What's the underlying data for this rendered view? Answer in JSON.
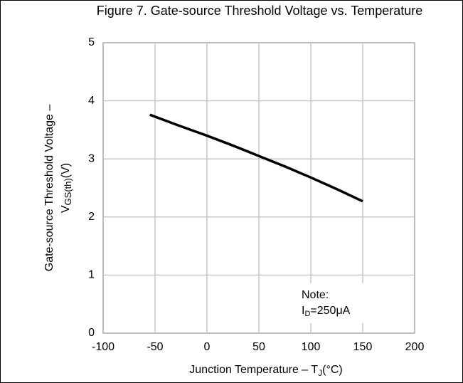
{
  "chart_data": {
    "type": "line",
    "title": "Figure 7. Gate-source Threshold Voltage vs. Temperature",
    "xlabel": {
      "text": "Junction Temperature  –  T",
      "subscript": "J",
      "unit": "(°C)"
    },
    "ylabel": {
      "line1": "Gate-source Threshold Voltage –",
      "symbol": "V",
      "subscript": "GS(th)",
      "unit": "(V)"
    },
    "note": {
      "line1": "Note:",
      "symbol": "I",
      "subscript": "D",
      "text": "=250μA"
    },
    "x": [
      -55,
      -25,
      0,
      25,
      50,
      75,
      100,
      125,
      150
    ],
    "series": [
      {
        "color": "#000000",
        "values": [
          3.76,
          3.56,
          3.4,
          3.23,
          3.05,
          2.87,
          2.68,
          2.48,
          2.27
        ]
      }
    ],
    "xlim": [
      -100,
      200
    ],
    "xticks": [
      -100,
      -50,
      0,
      50,
      100,
      150,
      200
    ],
    "ylim": [
      0,
      5
    ],
    "yticks": [
      0,
      1,
      2,
      3,
      4,
      5
    ],
    "grid": true
  }
}
